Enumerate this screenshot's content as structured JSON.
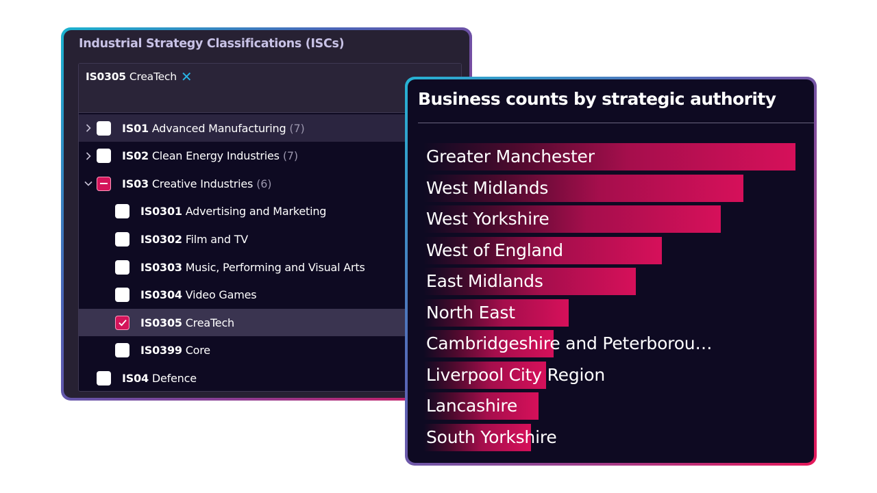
{
  "isc_panel": {
    "title": "Industrial Strategy Classifications (ISCs)",
    "chip": {
      "code": "IS0305",
      "name": "CreaTech",
      "remove_icon": "close-icon"
    },
    "rows": [
      {
        "code": "IS01",
        "name": "Advanced Manufacturing",
        "count": "(7)",
        "expander": "chevron-right-icon",
        "state": "unchecked"
      },
      {
        "code": "IS02",
        "name": "Clean Energy Industries",
        "count": "(7)",
        "expander": "chevron-right-icon",
        "state": "unchecked"
      },
      {
        "code": "IS03",
        "name": "Creative Industries",
        "count": "(6)",
        "expander": "chevron-down-icon",
        "state": "partial"
      },
      {
        "code": "IS0301",
        "name": "Advertising and Marketing",
        "state": "unchecked"
      },
      {
        "code": "IS0302",
        "name": "Film and TV",
        "state": "unchecked"
      },
      {
        "code": "IS0303",
        "name": "Music, Performing and Visual Arts",
        "state": "unchecked"
      },
      {
        "code": "IS0304",
        "name": "Video Games",
        "state": "unchecked"
      },
      {
        "code": "IS0305",
        "name": "CreaTech",
        "state": "checked"
      },
      {
        "code": "IS0399",
        "name": "Core",
        "state": "unchecked"
      },
      {
        "code": "IS04",
        "name": "Defence",
        "state": "unchecked"
      }
    ]
  },
  "chart_panel": {
    "title": "Business counts by strategic authority"
  },
  "chart_data": {
    "type": "bar",
    "orientation": "horizontal",
    "title": "Business counts by strategic authority",
    "categories": [
      "Greater Manchester",
      "West Midlands",
      "West Yorkshire",
      "West of England",
      "East Midlands",
      "North East",
      "Cambridgeshire and Peterborou…",
      "Liverpool City Region",
      "Lancashire",
      "South Yorkshire"
    ],
    "values": [
      100,
      86,
      80,
      64,
      57,
      39,
      35,
      33,
      31,
      29
    ],
    "xlim": [
      0,
      100
    ],
    "grid": false,
    "bar_color": "#d6105a"
  },
  "colors": {
    "accent": "#d4145a",
    "chip_close": "#29b6e6",
    "panel_bg": "#272133",
    "list_bg": "#0e0a22"
  }
}
